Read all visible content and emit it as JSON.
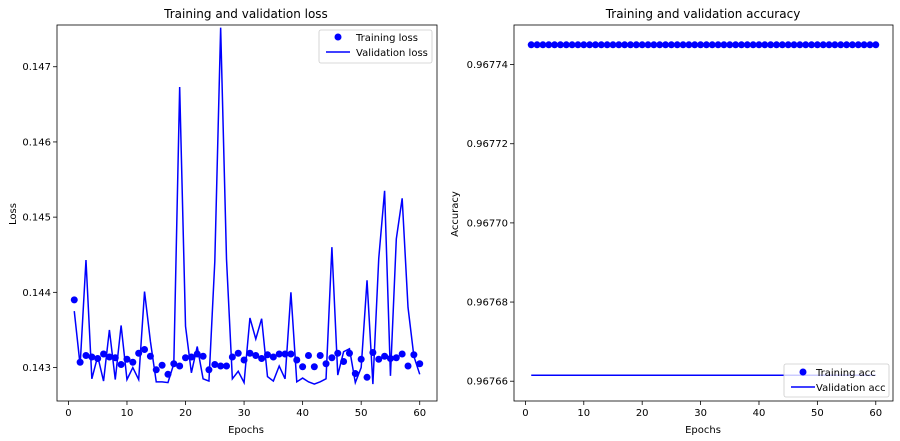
{
  "chart_data": [
    {
      "type": "line",
      "title": "Training and validation loss",
      "xlabel": "Epochs",
      "ylabel": "Loss",
      "xlim": [
        -1.95,
        62.95
      ],
      "ylim": [
        0.142555,
        0.147555
      ],
      "xticks": [
        0,
        10,
        20,
        30,
        40,
        50,
        60
      ],
      "xtick_labels": [
        "0",
        "10",
        "20",
        "30",
        "40",
        "50",
        "60"
      ],
      "yticks": [
        0.143,
        0.144,
        0.145,
        0.146,
        0.147
      ],
      "ytick_labels": [
        "0.143",
        "0.144",
        "0.145",
        "0.146",
        "0.147"
      ],
      "grid": false,
      "legend_position": "top-right",
      "x": [
        1,
        2,
        3,
        4,
        5,
        6,
        7,
        8,
        9,
        10,
        11,
        12,
        13,
        14,
        15,
        16,
        17,
        18,
        19,
        20,
        21,
        22,
        23,
        24,
        25,
        26,
        27,
        28,
        29,
        30,
        31,
        32,
        33,
        34,
        35,
        36,
        37,
        38,
        39,
        40,
        41,
        42,
        43,
        44,
        45,
        46,
        47,
        48,
        49,
        50,
        51,
        52,
        53,
        54,
        55,
        56,
        57,
        58,
        59,
        60
      ],
      "series": [
        {
          "name": "Training loss",
          "style": "markers",
          "color": "#0000ff",
          "values": [
            0.1439,
            0.14307,
            0.14316,
            0.14314,
            0.14312,
            0.14318,
            0.14314,
            0.14313,
            0.14304,
            0.14311,
            0.14307,
            0.14319,
            0.14324,
            0.14315,
            0.14297,
            0.14303,
            0.14291,
            0.14305,
            0.14302,
            0.14313,
            0.14314,
            0.14318,
            0.14315,
            0.14297,
            0.14304,
            0.14302,
            0.14302,
            0.14314,
            0.14319,
            0.1431,
            0.14319,
            0.14316,
            0.14312,
            0.14317,
            0.14314,
            0.14318,
            0.14318,
            0.14318,
            0.1431,
            0.14301,
            0.14316,
            0.14301,
            0.14316,
            0.14305,
            0.14313,
            0.14319,
            0.14308,
            0.14319,
            0.14292,
            0.14311,
            0.14287,
            0.1432,
            0.14311,
            0.14315,
            0.14312,
            0.14313,
            0.14318,
            0.14302,
            0.14317,
            0.14305
          ]
        },
        {
          "name": "Validation loss",
          "style": "line",
          "color": "#0000ff",
          "values": [
            0.14375,
            0.14303,
            0.14443,
            0.14285,
            0.14315,
            0.14282,
            0.1435,
            0.14284,
            0.14356,
            0.14284,
            0.143,
            0.14284,
            0.14401,
            0.14335,
            0.14281,
            0.14281,
            0.1428,
            0.14305,
            0.14673,
            0.14355,
            0.14293,
            0.14328,
            0.14285,
            0.14282,
            0.14441,
            0.14752,
            0.14444,
            0.14285,
            0.14295,
            0.1428,
            0.14366,
            0.14338,
            0.14365,
            0.14288,
            0.14282,
            0.14302,
            0.14285,
            0.144,
            0.14281,
            0.14286,
            0.14281,
            0.14278,
            0.14281,
            0.14285,
            0.1446,
            0.1429,
            0.14321,
            0.14325,
            0.1428,
            0.143,
            0.14416,
            0.14278,
            0.14445,
            0.14535,
            0.14289,
            0.14471,
            0.14525,
            0.1438,
            0.14315,
            0.14291
          ]
        }
      ]
    },
    {
      "type": "line",
      "title": "Training and validation accuracy",
      "xlabel": "Epochs",
      "ylabel": "Accuracy",
      "xlim": [
        -1.95,
        62.95
      ],
      "ylim": [
        0.967655,
        0.96775
      ],
      "xticks": [
        0,
        10,
        20,
        30,
        40,
        50,
        60
      ],
      "xtick_labels": [
        "0",
        "10",
        "20",
        "30",
        "40",
        "50",
        "60"
      ],
      "yticks": [
        0.96766,
        0.96768,
        0.9677,
        0.96772,
        0.96774
      ],
      "ytick_labels": [
        "0.96766",
        "0.96768",
        "0.96770",
        "0.96772",
        "0.96774"
      ],
      "grid": false,
      "legend_position": "bottom-right",
      "x": [
        1,
        2,
        3,
        4,
        5,
        6,
        7,
        8,
        9,
        10,
        11,
        12,
        13,
        14,
        15,
        16,
        17,
        18,
        19,
        20,
        21,
        22,
        23,
        24,
        25,
        26,
        27,
        28,
        29,
        30,
        31,
        32,
        33,
        34,
        35,
        36,
        37,
        38,
        39,
        40,
        41,
        42,
        43,
        44,
        45,
        46,
        47,
        48,
        49,
        50,
        51,
        52,
        53,
        54,
        55,
        56,
        57,
        58,
        59,
        60
      ],
      "series": [
        {
          "name": "Training acc",
          "style": "markers",
          "color": "#0000ff",
          "constant": 0.967745
        },
        {
          "name": "Validation acc",
          "style": "line",
          "color": "#0000ff",
          "constant": 0.9676615
        }
      ]
    }
  ]
}
